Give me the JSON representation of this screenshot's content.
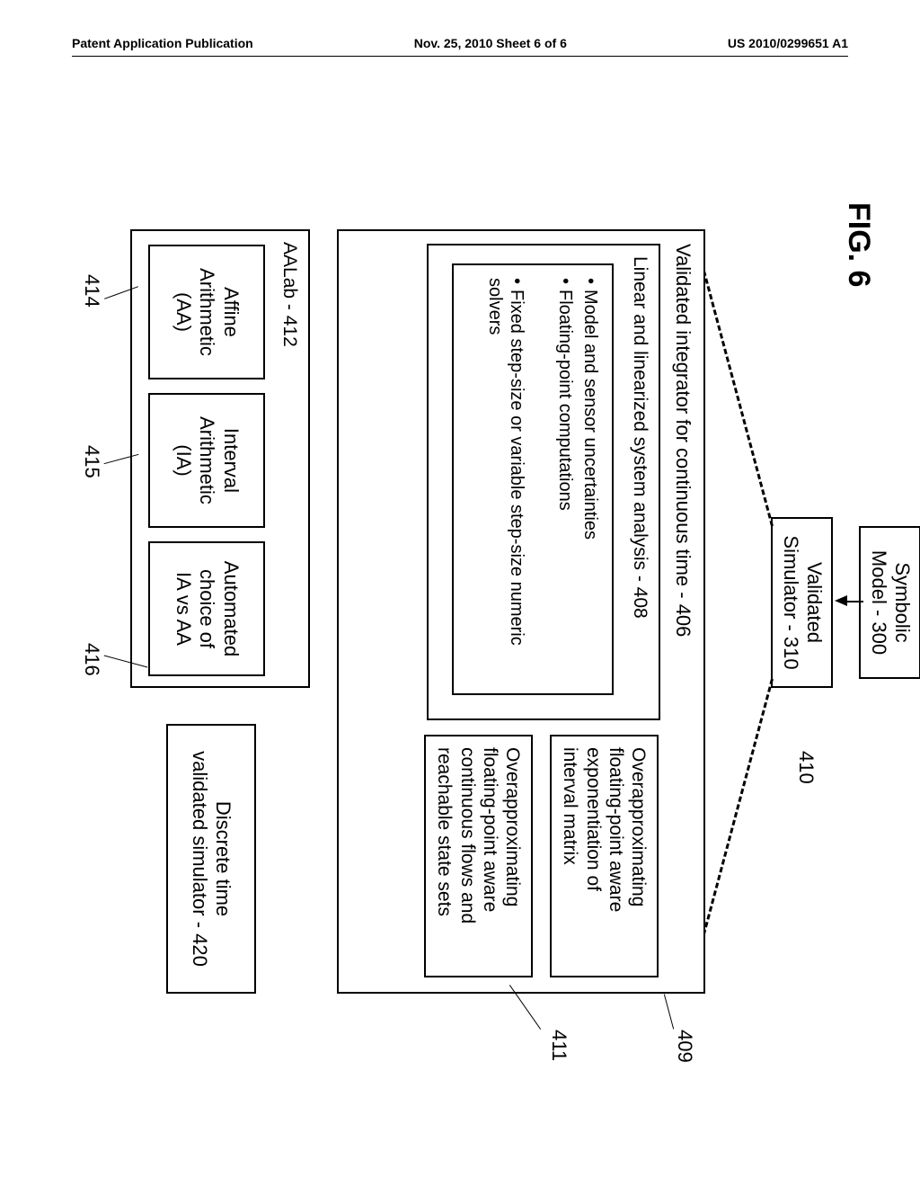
{
  "header": {
    "left": "Patent Application Publication",
    "center": "Nov. 25, 2010  Sheet 6 of 6",
    "right": "US 2010/0299651 A1"
  },
  "figure_label": "FIG. 6",
  "boxes": {
    "symbolic_model": "Symbolic\nModel - 300",
    "validated_sim": "Validated\nSimulator - 310",
    "integrator_title": "Validated integrator for continuous time - 406",
    "linear_analysis": "Linear and linearized system analysis - 408",
    "bullet1": "Model and sensor uncertainties",
    "bullet2": "Floating-point computations",
    "bullet3": "Fixed step-size or variable step-size numeric solvers",
    "overapprox1": "Overapproximating\nfloating-point aware\nexponentiation of\ninterval matrix",
    "overapprox2": "Overapproximating\nfloating-point aware\ncontinuous flows and\nreachable state sets",
    "aalab_title": "AALab - 412",
    "affine": "Affine\nArithmetic\n(AA)",
    "interval": "Interval\nArithmetic\n(IA)",
    "automated": "Automated\nchoice of\nIA vs AA",
    "discrete": "Discrete time\nvalidated simulator - 420"
  },
  "refs": {
    "r410": "410",
    "r409": "409",
    "r411": "411",
    "r414": "414",
    "r415": "415",
    "r416": "416"
  },
  "colors": {
    "line": "#000000",
    "bg": "#ffffff"
  }
}
